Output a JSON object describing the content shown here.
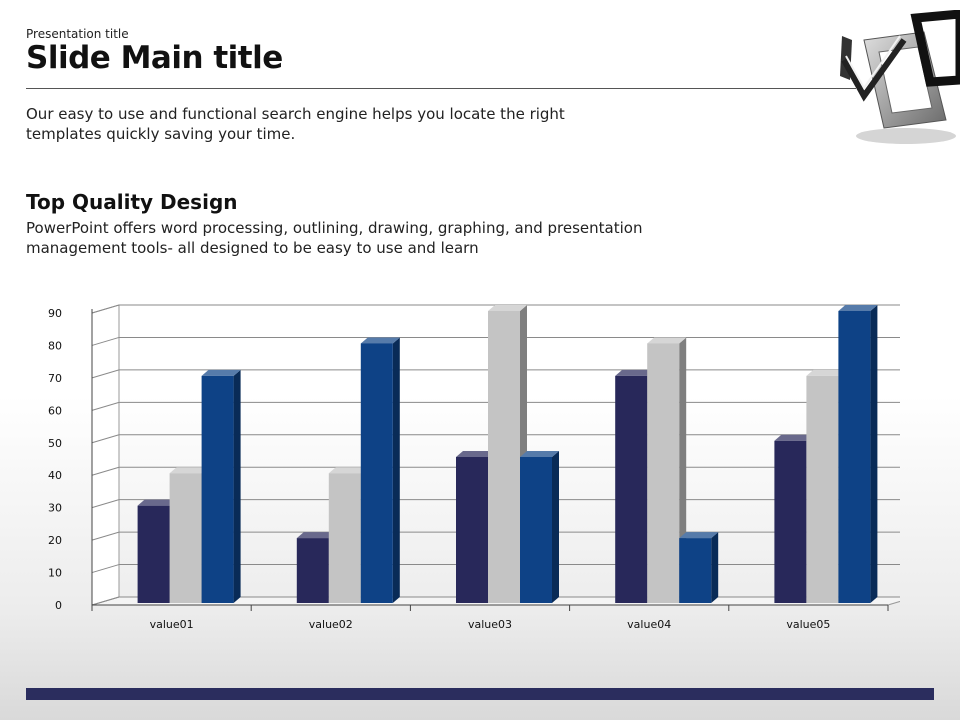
{
  "slide": {
    "subtitle": "Presentation title",
    "title": "Slide Main title",
    "intro": "Our easy to use and functional search engine helps you locate the right templates quickly saving your time.",
    "section_heading": "Top Quality Design",
    "section_body": "PowerPoint offers word processing, outlining, drawing, graphing, and presentation management tools- all designed to be easy to use and learn"
  },
  "colors": {
    "series1": "#28285a",
    "series2": "#c4c4c4",
    "series3": "#0e4286",
    "bottom_bar": "#2b2d5e"
  },
  "logo_icon": "3d-checkmark-frame-icon",
  "chart_data": {
    "type": "bar",
    "style": "3d-clustered-column",
    "categories": [
      "value01",
      "value02",
      "value03",
      "value04",
      "value05"
    ],
    "series": [
      {
        "values": [
          30,
          20,
          45,
          70,
          50
        ]
      },
      {
        "values": [
          40,
          40,
          90,
          80,
          70
        ]
      },
      {
        "values": [
          70,
          80,
          45,
          20,
          90
        ]
      }
    ],
    "yticks": [
      "0",
      "10",
      "20",
      "30",
      "40",
      "50",
      "60",
      "70",
      "80",
      "90"
    ],
    "ylim": [
      0,
      90
    ],
    "grid": true,
    "legend": "none"
  }
}
